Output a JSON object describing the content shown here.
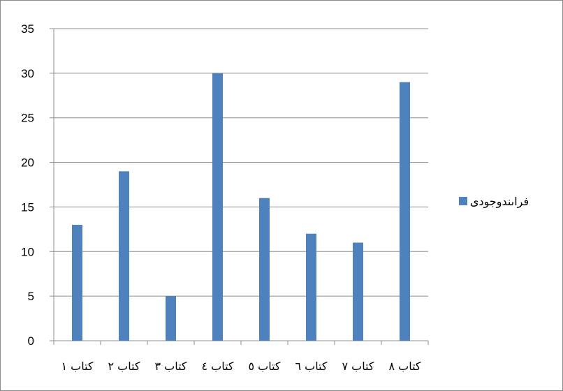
{
  "chart_data": {
    "type": "bar",
    "categories": [
      "كتاب ١",
      "كتاب ٢",
      "كتاب ٣",
      "كتاب ٤",
      "كتاب ٥",
      "كتاب ٦",
      "كتاب ٧",
      "كتاب ٨"
    ],
    "series": [
      {
        "name": "فراىندوجودى",
        "values": [
          13,
          19,
          5,
          30,
          16,
          12,
          11,
          29
        ],
        "color": "#4f81bd"
      }
    ],
    "ylim": [
      0,
      35
    ],
    "yticks": [
      0,
      5,
      10,
      15,
      20,
      25,
      30,
      35
    ],
    "grid": true,
    "legend_position": "right",
    "title": "",
    "xlabel": "",
    "ylabel": ""
  }
}
